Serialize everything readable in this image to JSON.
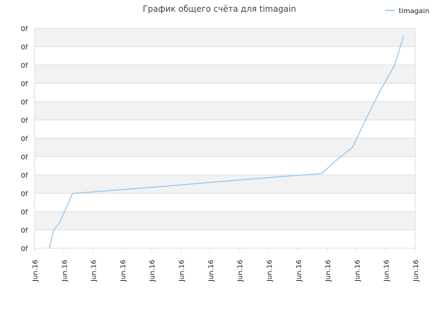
{
  "chart_data": {
    "type": "line",
    "title": "График общего счёта для timagain",
    "xlabel": "",
    "ylabel": "",
    "x_tick_labels": [
      "Jun.16",
      "Jun.16",
      "Jun.16",
      "Jun.16",
      "Jun.16",
      "Jun.16",
      "Jun.16",
      "Jun.16",
      "Jun.16",
      "Jun.16",
      "Jun.16",
      "Jun.16",
      "Jun.16",
      "Jun.16"
    ],
    "y_tick_labels": [
      "0f",
      "0f",
      "0f",
      "0f",
      "0f",
      "0f",
      "0f",
      "0f",
      "0f",
      "0f",
      "0f",
      "0f",
      "0f"
    ],
    "ylim": [
      0,
      12
    ],
    "xlim": [
      0,
      13
    ],
    "grid": true,
    "legend_position": "top-right",
    "series": [
      {
        "name": "timagain",
        "color": "#90c4ee",
        "x": [
          0.5,
          0.65,
          0.85,
          1.3,
          2,
          3,
          4,
          5,
          6,
          7,
          8,
          9,
          9.8,
          10.3,
          10.85,
          11.3,
          11.8,
          12.3,
          12.6
        ],
        "y": [
          0,
          1,
          1.4,
          3,
          3.08,
          3.2,
          3.33,
          3.46,
          3.6,
          3.73,
          3.86,
          3.98,
          4.08,
          4.8,
          5.5,
          7,
          8.6,
          10,
          11.6
        ]
      }
    ],
    "colors": {
      "line": "#90c4ee",
      "band": "#f2f2f2",
      "grid": "#dddddd"
    }
  }
}
